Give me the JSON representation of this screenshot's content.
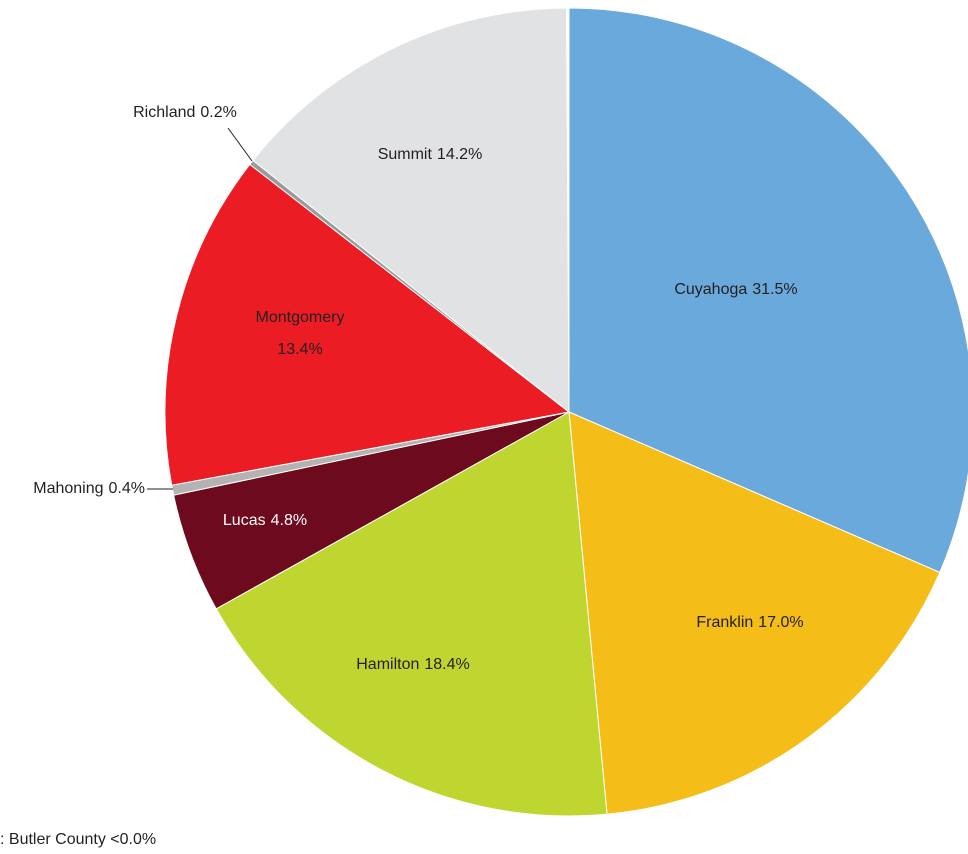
{
  "chart_data": {
    "type": "pie",
    "categories": [
      "Cuyahoga",
      "Franklin",
      "Hamilton",
      "Lucas",
      "Mahoning",
      "Montgomery",
      "Richland",
      "Summit"
    ],
    "values": [
      31.5,
      17.0,
      18.4,
      4.8,
      0.4,
      13.4,
      0.2,
      14.2
    ],
    "value_labels": [
      "31.5%",
      "17.0%",
      "18.4%",
      "4.8%",
      "0.4%",
      "13.4%",
      "0.2%",
      "14.2%"
    ],
    "colors": [
      "#6aa9db",
      "#f5bd17",
      "#bfd631",
      "#6d0a1d",
      "#b3b3b3",
      "#ec1c24",
      "#9a9a9a",
      "#e1e2e4"
    ],
    "footnote": ": Butler County <0.0%"
  }
}
